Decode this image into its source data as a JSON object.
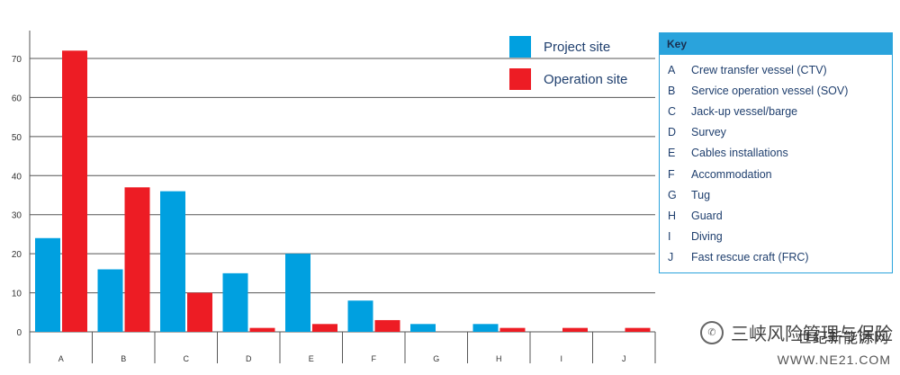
{
  "chart_data": {
    "type": "bar",
    "categories": [
      "A",
      "B",
      "C",
      "D",
      "E",
      "F",
      "G",
      "H",
      "I",
      "J"
    ],
    "series": [
      {
        "name": "Project site",
        "color": "#00a0e0",
        "values": [
          24,
          16,
          36,
          15,
          20,
          8,
          2,
          2,
          0,
          0
        ]
      },
      {
        "name": "Operation site",
        "color": "#ed1c24",
        "values": [
          72,
          37,
          10,
          1,
          2,
          3,
          0,
          1,
          1,
          1
        ]
      }
    ],
    "ylim": [
      0,
      70
    ],
    "yticks": [
      0,
      10,
      20,
      30,
      40,
      50,
      60,
      70
    ],
    "grid": true,
    "legend_position": "top-right"
  },
  "key": {
    "title": "Key",
    "items": [
      {
        "letter": "A",
        "label": "Crew transfer vessel (CTV)"
      },
      {
        "letter": "B",
        "label": "Service operation vessel (SOV)"
      },
      {
        "letter": "C",
        "label": "Jack-up vessel/barge"
      },
      {
        "letter": "D",
        "label": "Survey"
      },
      {
        "letter": "E",
        "label": "Cables installations"
      },
      {
        "letter": "F",
        "label": "Accommodation"
      },
      {
        "letter": "G",
        "label": "Tug"
      },
      {
        "letter": "H",
        "label": "Guard"
      },
      {
        "letter": "I",
        "label": "Diving"
      },
      {
        "letter": "J",
        "label": "Fast rescue craft (FRC)"
      }
    ]
  },
  "watermark": {
    "text": "三峡风险管理与保险",
    "overlay": "世纪新能源网",
    "url": "WWW.NE21.COM"
  }
}
